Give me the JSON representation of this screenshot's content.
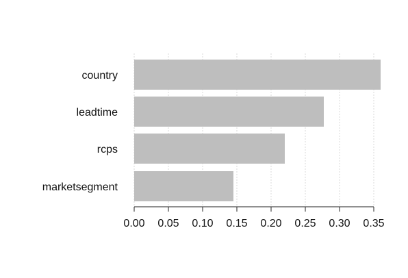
{
  "chart_data": {
    "type": "bar",
    "orientation": "horizontal",
    "categories": [
      "country",
      "leadtime",
      "rcps",
      "marketsegment"
    ],
    "values": [
      0.36,
      0.277,
      0.22,
      0.145
    ],
    "xlim": [
      0,
      0.36
    ],
    "x_ticks": [
      "0.00",
      "0.05",
      "0.10",
      "0.15",
      "0.20",
      "0.25",
      "0.30",
      "0.35"
    ],
    "x_tick_values": [
      0,
      0.05,
      0.1,
      0.15,
      0.2,
      0.25,
      0.3,
      0.35
    ],
    "grid": true,
    "bar_color": "#bebebe",
    "grid_color": "#d9d9d9",
    "axis_color": "#222222"
  }
}
